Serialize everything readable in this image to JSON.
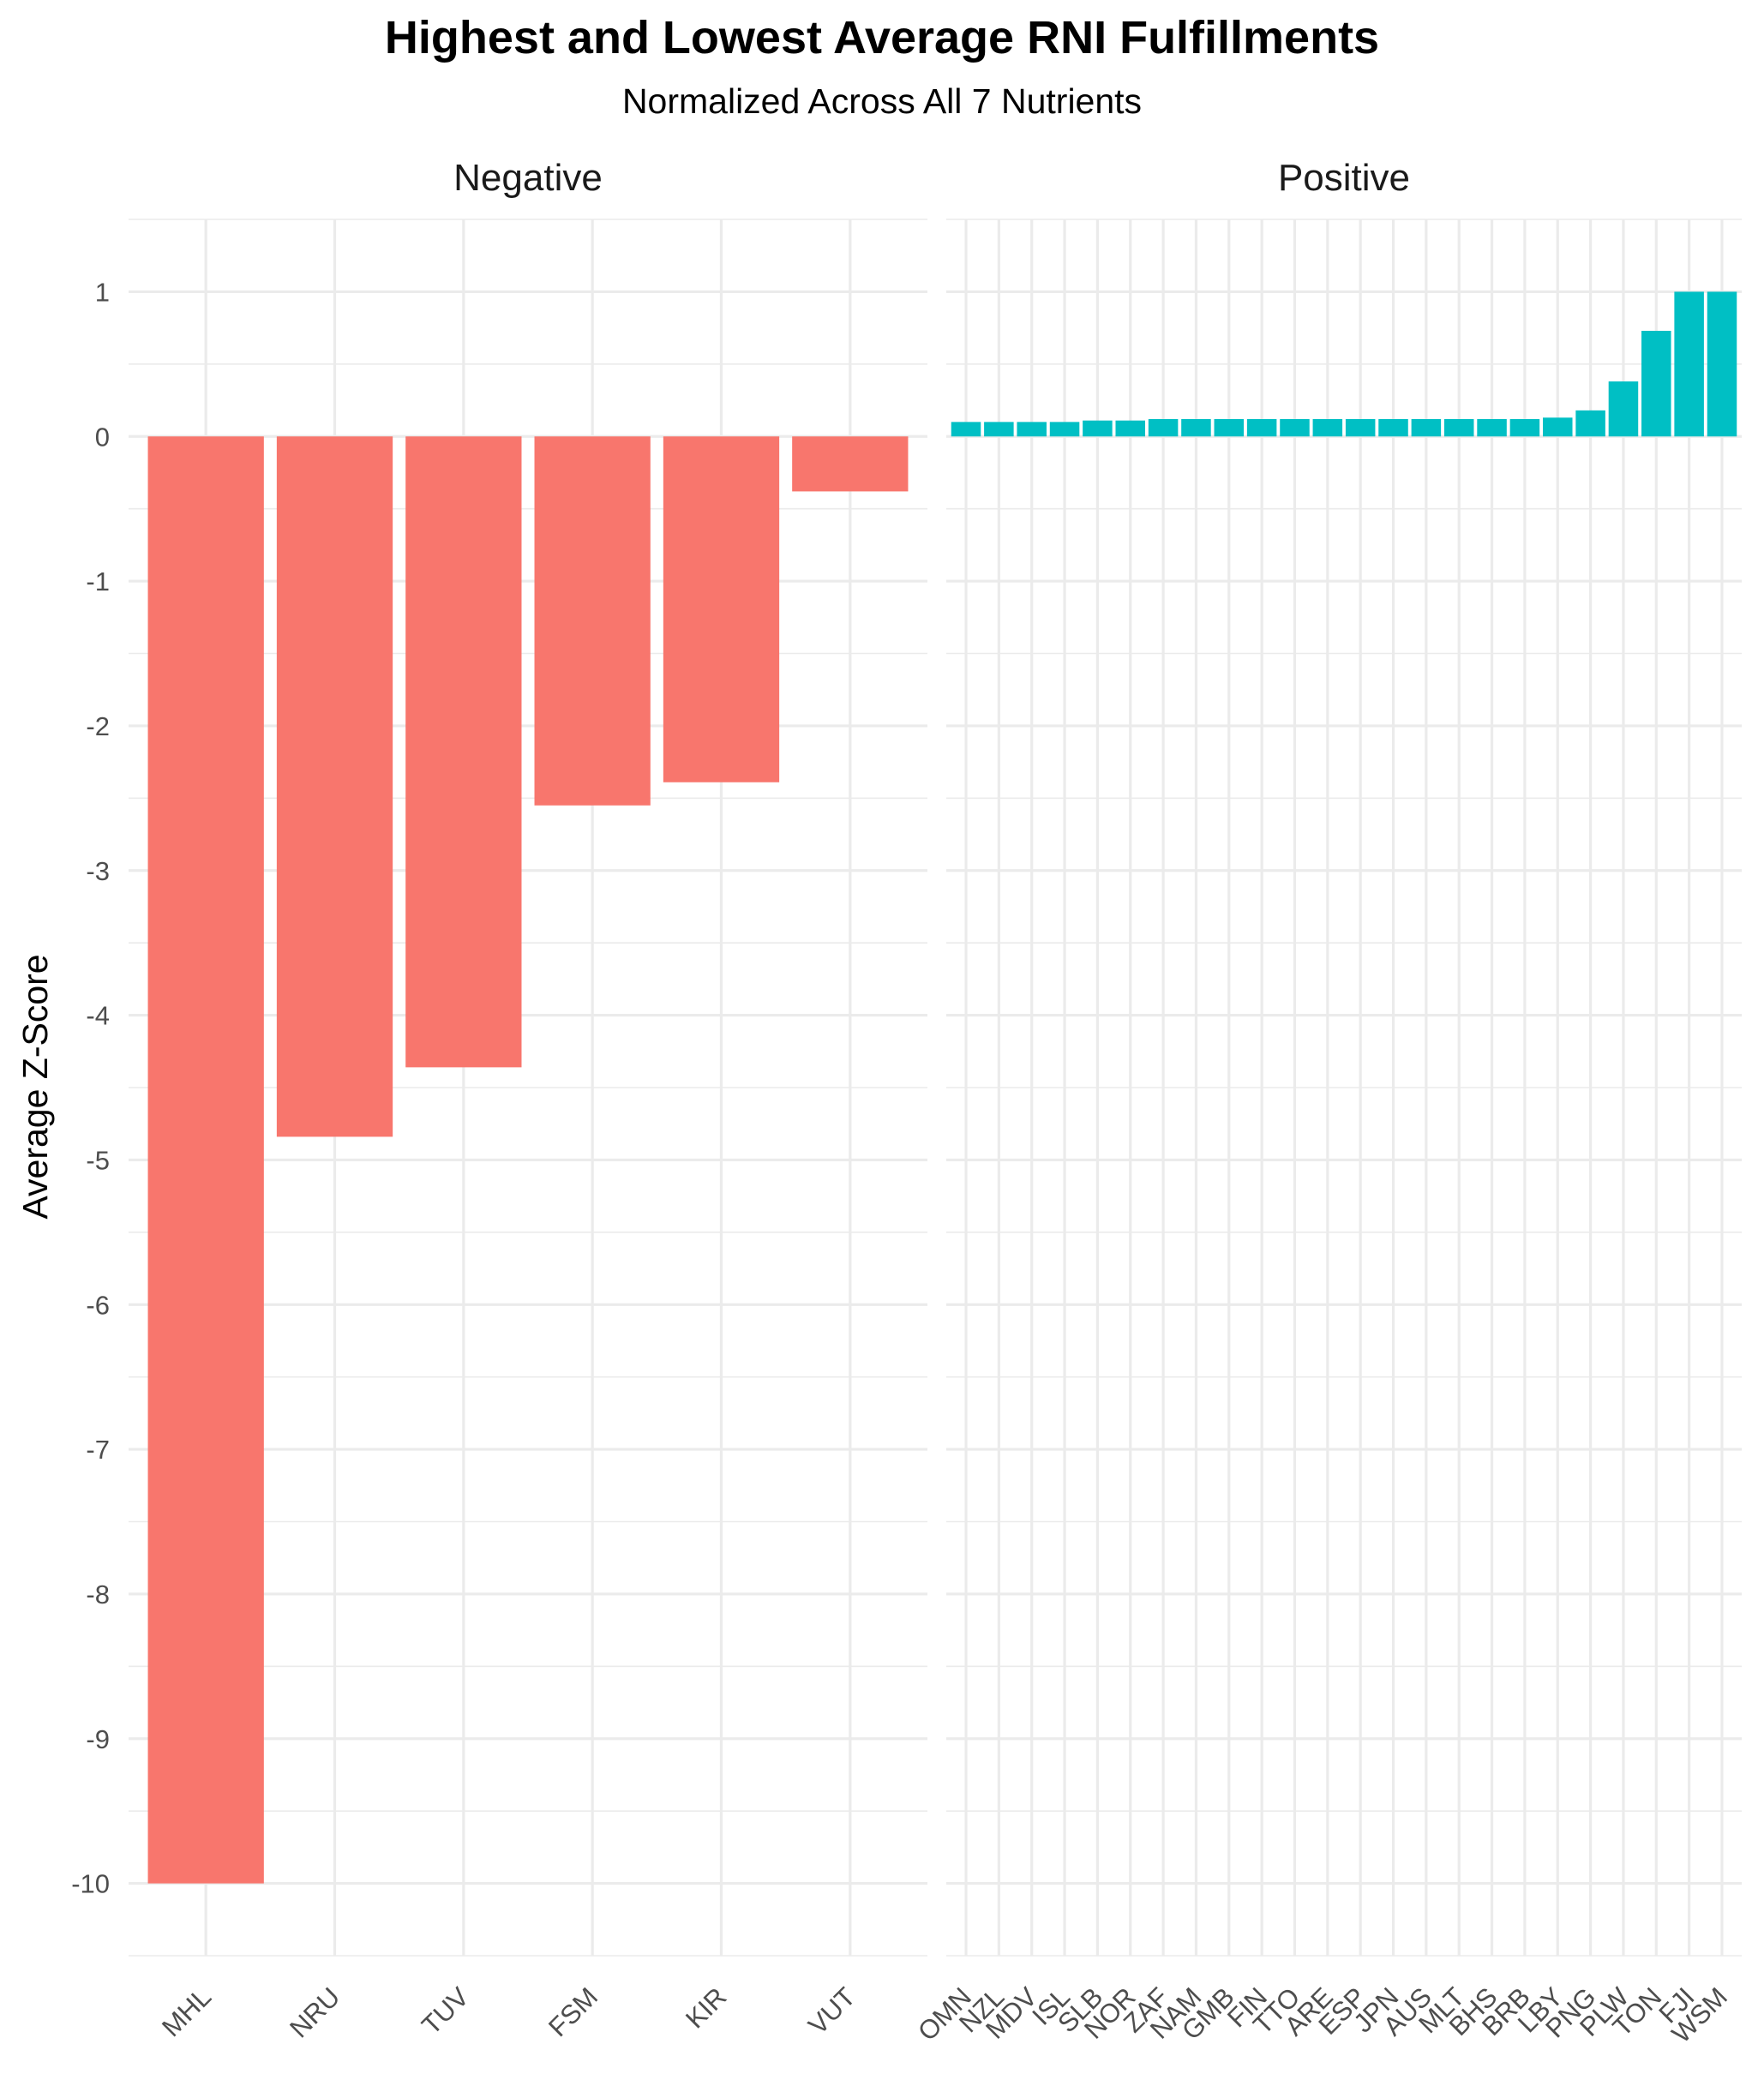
{
  "chart_data": {
    "type": "bar",
    "title": "Highest and Lowest Average RNI Fulfillments",
    "subtitle": "Normalized Across All 7 Nutrients",
    "ylabel": "Average Z-Score",
    "xlabel": "",
    "ylim": [
      -10.5,
      1.5
    ],
    "y_ticks": [
      1,
      0,
      -1,
      -2,
      -3,
      -4,
      -5,
      -6,
      -7,
      -8,
      -9,
      -10
    ],
    "grid": true,
    "legend": "none",
    "panels": [
      {
        "name": "Negative",
        "color": "#F8766D",
        "categories": [
          "MHL",
          "NRU",
          "TUV",
          "FSM",
          "KIR",
          "VUT"
        ],
        "values": [
          -10.0,
          -4.84,
          -4.36,
          -2.55,
          -2.39,
          -0.38
        ]
      },
      {
        "name": "Positive",
        "color": "#00BFC4",
        "categories": [
          "OMN",
          "NZL",
          "MDV",
          "ISL",
          "SLB",
          "NOR",
          "ZAF",
          "NAM",
          "GMB",
          "FIN",
          "TTO",
          "ARE",
          "ESP",
          "JPN",
          "AUS",
          "MLT",
          "BHS",
          "BRB",
          "LBY",
          "PNG",
          "PLW",
          "TON",
          "FJI",
          "WSM"
        ],
        "values": [
          0.1,
          0.1,
          0.1,
          0.1,
          0.11,
          0.11,
          0.12,
          0.12,
          0.12,
          0.12,
          0.12,
          0.12,
          0.12,
          0.12,
          0.12,
          0.12,
          0.12,
          0.12,
          0.13,
          0.18,
          0.38,
          0.73,
          1.0,
          1.0
        ]
      }
    ]
  }
}
